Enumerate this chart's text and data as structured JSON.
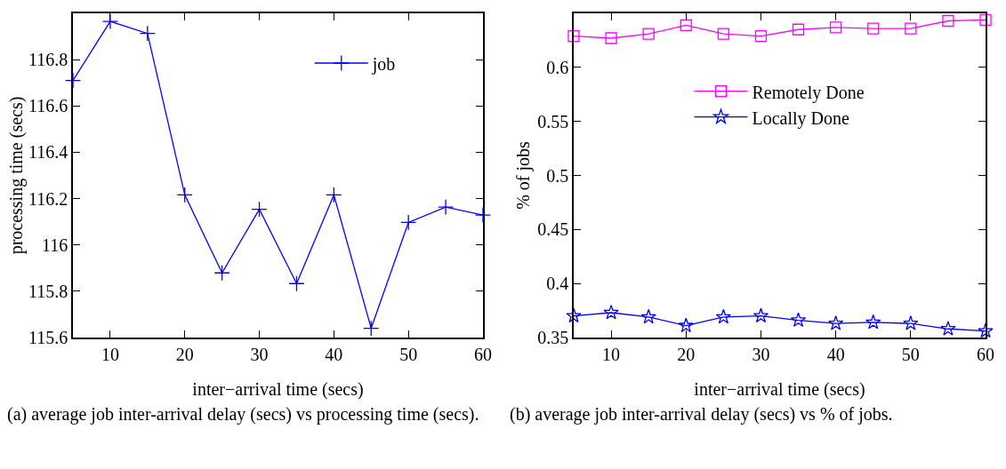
{
  "chart_data": [
    {
      "type": "line",
      "xlabel": "inter−arrival time (secs)",
      "ylabel": "processing time (secs)",
      "x": [
        5,
        10,
        15,
        20,
        25,
        30,
        35,
        40,
        45,
        50,
        55,
        60
      ],
      "series": [
        {
          "name": "job",
          "color": "#0000ff",
          "marker": "cross",
          "values": [
            116.71,
            116.965,
            116.913,
            116.216,
            115.879,
            116.154,
            115.833,
            116.216,
            115.64,
            116.097,
            116.163,
            116.129
          ]
        }
      ],
      "xlim": [
        5,
        60
      ],
      "xticks": [
        10,
        20,
        30,
        40,
        50,
        60
      ],
      "ylim": [
        115.6,
        117.0
      ],
      "yticks": [
        115.6,
        115.8,
        116,
        116.2,
        116.4,
        116.6,
        116.8
      ],
      "grid": false,
      "legend": "top right",
      "line_style": "solid",
      "annotations": [
        "(a) average job inter-arrival delay (secs) vs processing time (secs)."
      ]
    },
    {
      "type": "line",
      "xlabel": "inter−arrival time (secs)",
      "ylabel": "% of jobs",
      "x": [
        5,
        10,
        15,
        20,
        25,
        30,
        35,
        40,
        45,
        50,
        55,
        60
      ],
      "series": [
        {
          "name": "Remotely Done",
          "color": "#ff00ff",
          "marker": "square",
          "values": [
            0.629,
            0.627,
            0.631,
            0.639,
            0.631,
            0.629,
            0.635,
            0.637,
            0.636,
            0.636,
            0.643,
            0.644
          ]
        },
        {
          "name": "Locally Done",
          "color": "#0000ff",
          "marker": "star",
          "values": [
            0.37,
            0.373,
            0.369,
            0.361,
            0.369,
            0.37,
            0.366,
            0.363,
            0.364,
            0.363,
            0.358,
            0.356
          ]
        }
      ],
      "xlim": [
        5,
        60
      ],
      "xticks": [
        10,
        20,
        30,
        40,
        50,
        60
      ],
      "ylim": [
        0.35,
        0.65
      ],
      "yticks": [
        0.35,
        0.4,
        0.45,
        0.5,
        0.55,
        0.6
      ],
      "grid": false,
      "legend": "center",
      "line_style": "solid",
      "annotations": [
        "(b) average job inter-arrival delay (secs) vs % of jobs."
      ]
    }
  ]
}
